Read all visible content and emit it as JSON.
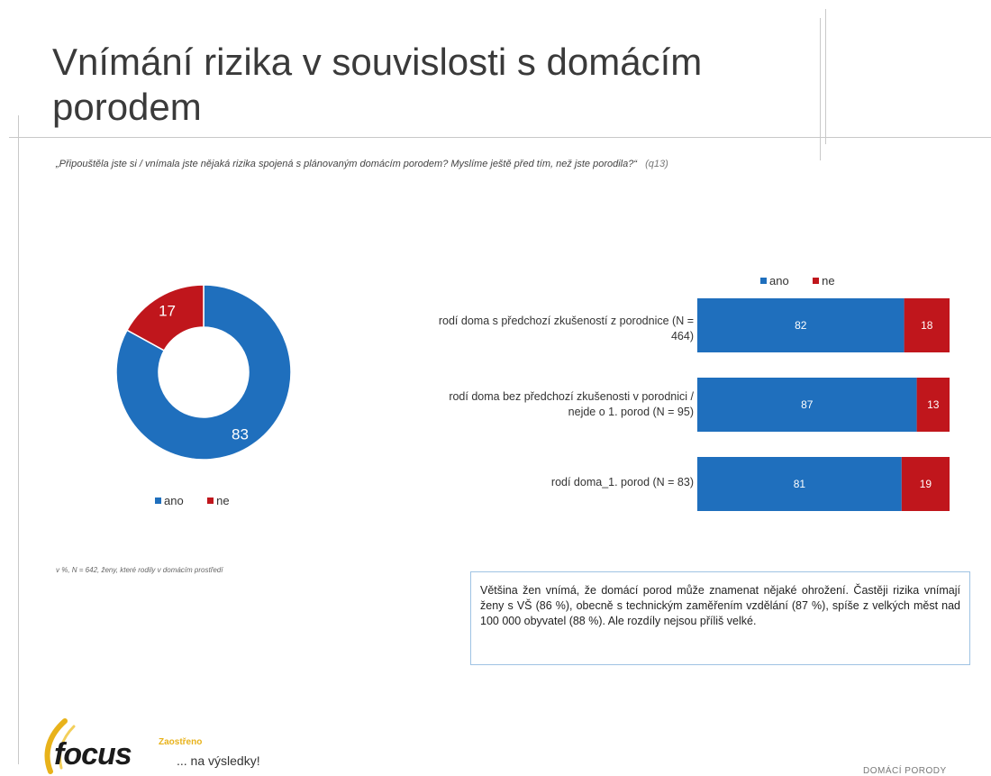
{
  "slide": {
    "title": "Vnímání rizika v souvislosti s domácím porodem",
    "question": "„Připouštěla jste si / vnímala jste nějaká rizika spojená s plánovaným domácím porodem? Myslíme ještě před tím, než jste porodila?“",
    "question_code": "(q13)"
  },
  "colors": {
    "ano": "#1f6fbd",
    "ne": "#c0161c"
  },
  "chart_data": [
    {
      "type": "pie",
      "variant": "donut",
      "categories": [
        "ano",
        "ne"
      ],
      "values": [
        83,
        17
      ],
      "legend": {
        "position": "bottom",
        "items": [
          "ano",
          "ne"
        ]
      }
    },
    {
      "type": "bar",
      "orientation": "horizontal",
      "stacked": true,
      "categories": [
        "rodí doma s předchozí zkušeností z porodnice (N = 464)",
        "rodí doma bez předchozí zkušenosti v porodnici / nejde o 1. porod (N = 95)",
        "rodí doma_1. porod (N = 83)"
      ],
      "series": [
        {
          "name": "ano",
          "values": [
            82,
            87,
            81
          ]
        },
        {
          "name": "ne",
          "values": [
            18,
            13,
            19
          ]
        }
      ],
      "legend": {
        "position": "top",
        "items": [
          "ano",
          "ne"
        ]
      }
    }
  ],
  "note": "v %, N = 642, ženy, které rodily v domácím prostředí",
  "callout": "Většina žen vnímá, že domácí porod může znamenat nějaké ohrožení. Častěji rizika vnímají ženy s VŠ (86 %), obecně s technickým zaměřením vzdělání (87 %), spíše z velkých měst nad 100 000 obyvatel (88 %). Ale rozdíly nejsou příliš velké.",
  "footer": {
    "logo_text": "focus",
    "brand": "Zaostřeno",
    "tagline": "... na výsledky!",
    "section": "DOMÁCÍ PORODY"
  }
}
